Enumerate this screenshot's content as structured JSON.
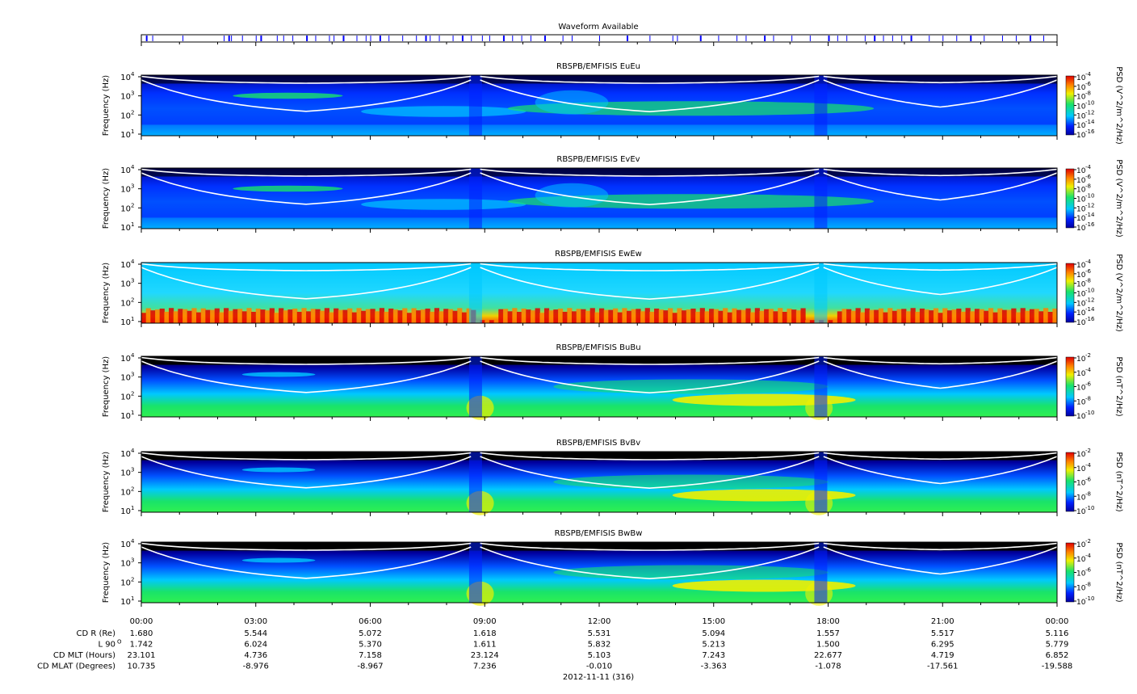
{
  "waveform": {
    "title": "Waveform Available",
    "bursts": [
      0.005,
      0.012,
      0.045,
      0.09,
      0.095,
      0.098,
      0.11,
      0.125,
      0.13,
      0.148,
      0.155,
      0.165,
      0.18,
      0.19,
      0.205,
      0.21,
      0.22,
      0.235,
      0.245,
      0.25,
      0.26,
      0.27,
      0.285,
      0.3,
      0.31,
      0.315,
      0.325,
      0.34,
      0.35,
      0.36,
      0.372,
      0.38,
      0.395,
      0.405,
      0.415,
      0.425,
      0.44,
      0.46,
      0.47,
      0.5,
      0.53,
      0.555,
      0.58,
      0.585,
      0.61,
      0.63,
      0.65,
      0.66,
      0.68,
      0.69,
      0.71,
      0.73,
      0.75,
      0.76,
      0.77,
      0.79,
      0.8,
      0.81,
      0.82,
      0.83,
      0.84,
      0.86,
      0.875,
      0.89,
      0.905,
      0.92,
      0.94,
      0.955,
      0.97,
      0.985
    ]
  },
  "chart_data": [
    {
      "type": "heatmap",
      "title": "RBSPB/EMFISIS  EuEu",
      "ylabel": "Frequency (Hz)",
      "colorbar_label": "PSD (V^2/m^2/Hz)",
      "colorbar_ticks": [
        "10",
        "10",
        "10",
        "10",
        "10",
        "10",
        "10"
      ],
      "colorbar_exps": [
        "-4",
        "-6",
        "-8",
        "-10",
        "-12",
        "-14",
        "-16"
      ],
      "yticks": [
        "10",
        "10",
        "10",
        "10"
      ],
      "yexps": [
        "4",
        "3",
        "2",
        "1"
      ],
      "ylim": [
        10,
        10000
      ],
      "kind": "E"
    },
    {
      "type": "heatmap",
      "title": "RBSPB/EMFISIS  EvEv",
      "ylabel": "Frequency (Hz)",
      "colorbar_label": "PSD (V^2/m^2/Hz)",
      "colorbar_ticks": [
        "10",
        "10",
        "10",
        "10",
        "10",
        "10",
        "10"
      ],
      "colorbar_exps": [
        "-4",
        "-6",
        "-8",
        "-10",
        "-12",
        "-14",
        "-16"
      ],
      "yticks": [
        "10",
        "10",
        "10",
        "10"
      ],
      "yexps": [
        "4",
        "3",
        "2",
        "1"
      ],
      "ylim": [
        10,
        10000
      ],
      "kind": "E"
    },
    {
      "type": "heatmap",
      "title": "RBSPB/EMFISIS  EwEw",
      "ylabel": "Frequency (Hz)",
      "colorbar_label": "PSD (V^2/m^2/Hz)",
      "colorbar_ticks": [
        "10",
        "10",
        "10",
        "10",
        "10",
        "10",
        "10"
      ],
      "colorbar_exps": [
        "-4",
        "-6",
        "-8",
        "-10",
        "-12",
        "-14",
        "-16"
      ],
      "yticks": [
        "10",
        "10",
        "10",
        "10"
      ],
      "yexps": [
        "4",
        "3",
        "2",
        "1"
      ],
      "ylim": [
        10,
        10000
      ],
      "kind": "W"
    },
    {
      "type": "heatmap",
      "title": "RBSPB/EMFISIS  BuBu",
      "ylabel": "Frequency (Hz)",
      "colorbar_label": "PSD (nT^2/Hz)",
      "colorbar_ticks": [
        "10",
        "10",
        "10",
        "10",
        "10"
      ],
      "colorbar_exps": [
        "-2",
        "-4",
        "-6",
        "-8",
        "-10"
      ],
      "yticks": [
        "10",
        "10",
        "10",
        "10"
      ],
      "yexps": [
        "4",
        "3",
        "2",
        "1"
      ],
      "ylim": [
        10,
        10000
      ],
      "kind": "B"
    },
    {
      "type": "heatmap",
      "title": "RBSPB/EMFISIS  BvBv",
      "ylabel": "Frequency (Hz)",
      "colorbar_label": "PSD (nT^2/Hz)",
      "colorbar_ticks": [
        "10",
        "10",
        "10",
        "10",
        "10"
      ],
      "colorbar_exps": [
        "-2",
        "-4",
        "-6",
        "-8",
        "-10"
      ],
      "yticks": [
        "10",
        "10",
        "10",
        "10"
      ],
      "yexps": [
        "4",
        "3",
        "2",
        "1"
      ],
      "ylim": [
        10,
        10000
      ],
      "kind": "B"
    },
    {
      "type": "heatmap",
      "title": "RBSPB/EMFISIS  BwBw",
      "ylabel": "Frequency (Hz)",
      "colorbar_label": "PSD (nT^2/Hz)",
      "colorbar_ticks": [
        "10",
        "10",
        "10",
        "10",
        "10"
      ],
      "colorbar_exps": [
        "-2",
        "-4",
        "-6",
        "-8",
        "-10"
      ],
      "yticks": [
        "10",
        "10",
        "10",
        "10"
      ],
      "yexps": [
        "4",
        "3",
        "2",
        "1"
      ],
      "ylim": [
        10,
        10000
      ],
      "kind": "B"
    }
  ],
  "xaxis": {
    "times": [
      "00:00",
      "03:00",
      "06:00",
      "09:00",
      "12:00",
      "15:00",
      "18:00",
      "21:00",
      "00:00"
    ],
    "date": "2012-11-11 (316)"
  },
  "ephemeris": {
    "rows": [
      {
        "label": "CD R (Re)",
        "values": [
          "1.680",
          "5.544",
          "5.072",
          "1.618",
          "5.531",
          "5.094",
          "1.557",
          "5.517",
          "5.116"
        ]
      },
      {
        "label": "L 90",
        "sup": "O",
        "values": [
          "1.742",
          "6.024",
          "5.370",
          "1.611",
          "5.832",
          "5.213",
          "1.500",
          "6.295",
          "5.779"
        ]
      },
      {
        "label": "CD MLT (Hours)",
        "values": [
          "23.101",
          "4.736",
          "7.158",
          "23.124",
          "5.103",
          "7.243",
          "22.677",
          "4.719",
          "6.852"
        ]
      },
      {
        "label": "CD MLAT (Degrees)",
        "values": [
          "10.735",
          "-8.976",
          "-8.967",
          "7.236",
          "-0.010",
          "-3.363",
          "-1.078",
          "-17.561",
          "-19.588"
        ]
      }
    ]
  },
  "colors": {
    "black": "#000000",
    "darkblue": "#0000a0",
    "blue": "#0020ff",
    "cyan": "#00c8ff",
    "green": "#19e36a",
    "yellow": "#f0f000",
    "orange": "#ff8000",
    "red": "#e00000",
    "waveform": "#0000ff",
    "white": "#ffffff"
  }
}
